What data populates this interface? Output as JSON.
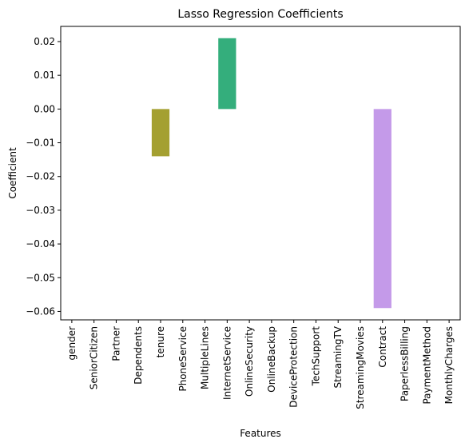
{
  "chart_data": {
    "type": "bar",
    "title": "Lasso Regression Coefficients",
    "xlabel": "Features",
    "ylabel": "Coefficient",
    "categories": [
      "gender",
      "SeniorCitizen",
      "Partner",
      "Dependents",
      "tenure",
      "PhoneService",
      "MultipleLines",
      "InternetService",
      "OnlineSecurity",
      "OnlineBackup",
      "DeviceProtection",
      "TechSupport",
      "StreamingTV",
      "StreamingMovies",
      "Contract",
      "PaperlessBilling",
      "PaymentMethod",
      "MonthlyCharges"
    ],
    "values": [
      0,
      0,
      0,
      0,
      -0.014,
      0,
      0,
      0.021,
      0,
      0,
      0,
      0,
      0,
      0,
      -0.059,
      0,
      0,
      0
    ],
    "colors": [
      "#f77189",
      "#ee7f49",
      "#d58c32",
      "#bb9832",
      "#a4a031",
      "#84a931",
      "#4fb032",
      "#34ae7c",
      "#36ab98",
      "#37a9ac",
      "#38a6bd",
      "#3aa3d2",
      "#5e99f4",
      "#9e8bf4",
      "#c49ae9",
      "#e77ef0",
      "#f564d0",
      "#f66ba6"
    ],
    "ylim": [
      -0.0625,
      0.0245
    ],
    "yticks": [
      0.02,
      0.01,
      0.0,
      -0.01,
      -0.02,
      -0.03,
      -0.04,
      -0.05,
      -0.06
    ],
    "ytick_labels": [
      "0.02",
      "0.01",
      "0.00",
      "−0.01",
      "−0.02",
      "−0.03",
      "−0.04",
      "−0.05",
      "−0.06"
    ],
    "grid": false,
    "legend": "none"
  }
}
